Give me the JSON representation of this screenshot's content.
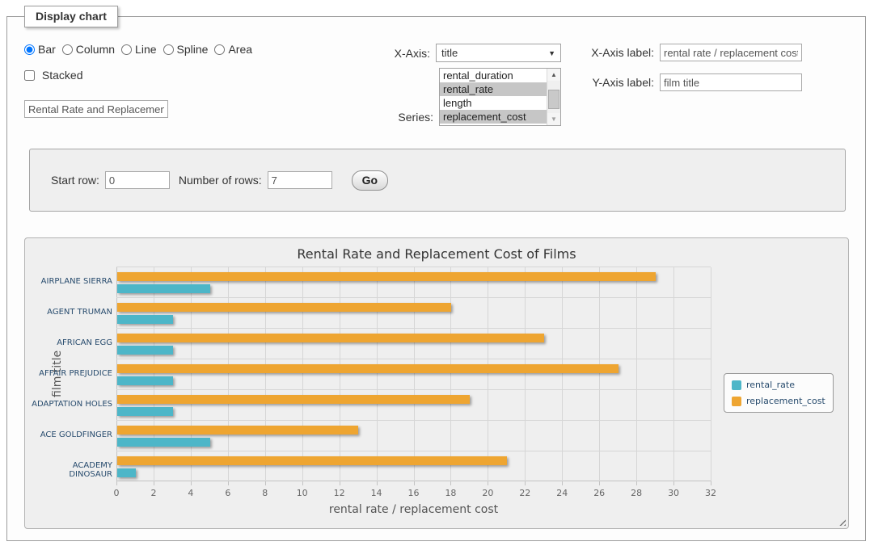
{
  "window": {
    "legend": "Display chart"
  },
  "chart_type": {
    "options": [
      {
        "label": "Bar",
        "selected": true
      },
      {
        "label": "Column",
        "selected": false
      },
      {
        "label": "Line",
        "selected": false
      },
      {
        "label": "Spline",
        "selected": false
      },
      {
        "label": "Area",
        "selected": false
      }
    ]
  },
  "stacked": {
    "label": "Stacked",
    "checked": false
  },
  "chart_title_input": {
    "value": "Rental Rate and Replacement Cost of Films"
  },
  "x_axis_select": {
    "label": "X-Axis:",
    "value": "title"
  },
  "series_list": {
    "label": "Series:",
    "options": [
      {
        "label": "rental_duration",
        "selected": false
      },
      {
        "label": "rental_rate",
        "selected": true
      },
      {
        "label": "length",
        "selected": false
      },
      {
        "label": "replacement_cost",
        "selected": true
      }
    ]
  },
  "axis_labels": {
    "x_label": "X-Axis label:",
    "x_value": "rental rate / replacement cost",
    "y_label": "Y-Axis label:",
    "y_value": "film title"
  },
  "row_controls": {
    "start_row_label": "Start row:",
    "start_row_value": "0",
    "number_of_rows_label": "Number of rows:",
    "number_of_rows_value": "7",
    "go_label": "Go"
  },
  "chart_data": {
    "type": "bar",
    "title": "Rental Rate and Replacement Cost of Films",
    "categories": [
      "AIRPLANE SIERRA",
      "AGENT TRUMAN",
      "AFRICAN EGG",
      "AFFAIR PREJUDICE",
      "ADAPTATION HOLES",
      "ACE GOLDFINGER",
      "ACADEMY DINOSAUR"
    ],
    "series": [
      {
        "name": "rental_rate",
        "color": "#4db6c8",
        "values": [
          4.99,
          2.99,
          2.99,
          2.99,
          2.99,
          4.99,
          0.99
        ]
      },
      {
        "name": "replacement_cost",
        "color": "#eea531",
        "values": [
          28.99,
          17.99,
          22.99,
          26.99,
          18.99,
          12.99,
          20.99
        ]
      }
    ],
    "xlabel": "rental rate / replacement cost",
    "ylabel": "film title",
    "xlim": [
      0,
      32
    ],
    "xticks": [
      0,
      2,
      4,
      6,
      8,
      10,
      12,
      14,
      16,
      18,
      20,
      22,
      24,
      26,
      28,
      30,
      32
    ],
    "legend_position": "right",
    "grid": true
  }
}
